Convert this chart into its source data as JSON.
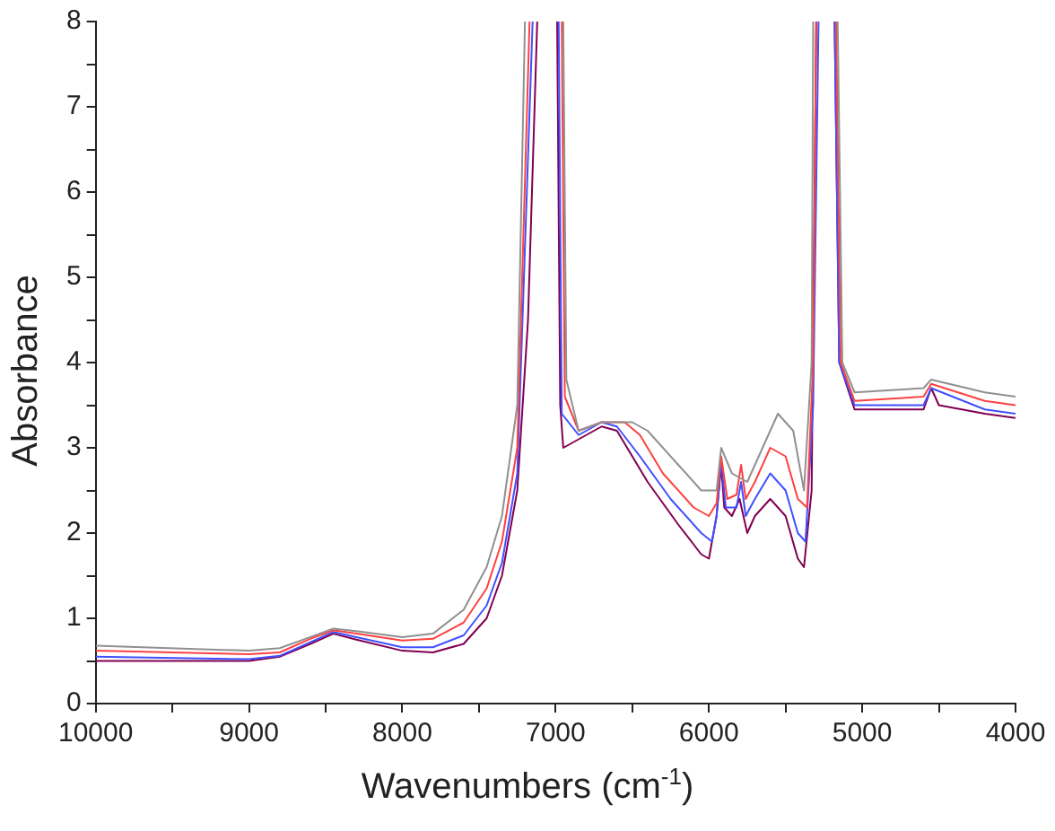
{
  "chart_data": {
    "type": "line",
    "xlabel": "Wavenumbers (cm$^{-1}$)",
    "ylabel": "Absorbance",
    "xlim": [
      10000,
      4000
    ],
    "xticks": [
      10000,
      {
        "value": 9500,
        "label": null
      },
      9000,
      {
        "value": 8500,
        "label": null
      },
      8000,
      {
        "value": 7500,
        "label": null
      },
      7000,
      {
        "value": 6500,
        "label": null
      },
      6000,
      {
        "value": 5500,
        "label": null
      },
      5000,
      {
        "value": 4500,
        "label": null
      },
      4000
    ],
    "ylim": [
      0,
      8
    ],
    "yticks": [
      0,
      {
        "value": 0.5,
        "label": null
      },
      1,
      {
        "value": 1.5,
        "label": null
      },
      2,
      {
        "value": 2.5,
        "label": null
      },
      3,
      {
        "value": 3.5,
        "label": null
      },
      4,
      {
        "value": 4.5,
        "label": null
      },
      5,
      {
        "value": 5.5,
        "label": null
      },
      6,
      {
        "value": 6.5,
        "label": null
      },
      7,
      {
        "value": 7.5,
        "label": null
      },
      8
    ],
    "grid": false,
    "legend": false,
    "marker": "none",
    "line_style": "solid",
    "series": [
      {
        "color": "#909090",
        "x": [
          10000,
          9000,
          8800,
          8600,
          8450,
          8300,
          8000,
          7800,
          7600,
          7450,
          7350,
          7250,
          7200,
          7100,
          6950,
          6930,
          6850,
          6700,
          6500,
          6400,
          6200,
          6050,
          5950,
          5920,
          5850,
          5750,
          5650,
          5550,
          5450,
          5380,
          5330,
          5320,
          5250,
          5160,
          5130,
          5050,
          4600,
          4550,
          4200,
          4000
        ],
        "values": [
          0.68,
          0.62,
          0.65,
          0.78,
          0.88,
          0.85,
          0.78,
          0.82,
          1.1,
          1.6,
          2.2,
          3.5,
          8,
          null,
          8,
          3.8,
          3.2,
          3.3,
          3.3,
          3.2,
          2.8,
          2.5,
          2.5,
          3.0,
          2.7,
          2.6,
          3.0,
          3.4,
          3.2,
          2.5,
          4,
          8,
          null,
          8,
          4,
          3.65,
          3.7,
          3.8,
          3.65,
          3.6
        ]
      },
      {
        "color": "#ff4040",
        "x": [
          10000,
          9000,
          8800,
          8600,
          8450,
          8300,
          8000,
          7800,
          7600,
          7450,
          7350,
          7250,
          7170,
          7100,
          6960,
          6940,
          6850,
          6700,
          6550,
          6450,
          6300,
          6100,
          6000,
          5950,
          5920,
          5880,
          5820,
          5790,
          5760,
          5700,
          5600,
          5500,
          5420,
          5360,
          5320,
          5300,
          5250,
          5170,
          5140,
          5050,
          4600,
          4550,
          4200,
          4000
        ],
        "values": [
          0.62,
          0.58,
          0.6,
          0.76,
          0.86,
          0.82,
          0.74,
          0.76,
          0.95,
          1.35,
          1.9,
          3.0,
          8,
          null,
          8,
          3.6,
          3.2,
          3.3,
          3.3,
          3.15,
          2.7,
          2.3,
          2.2,
          2.35,
          2.9,
          2.4,
          2.45,
          2.8,
          2.4,
          2.6,
          3.0,
          2.9,
          2.4,
          2.3,
          4,
          8,
          null,
          8,
          4,
          3.55,
          3.6,
          3.75,
          3.55,
          3.5
        ]
      },
      {
        "color": "#4050ff",
        "x": [
          10000,
          9000,
          8800,
          8600,
          8450,
          8300,
          8000,
          7800,
          7600,
          7450,
          7350,
          7250,
          7150,
          7100,
          6980,
          6960,
          6850,
          6700,
          6600,
          6450,
          6250,
          6050,
          5980,
          5950,
          5920,
          5890,
          5820,
          5790,
          5760,
          5700,
          5600,
          5500,
          5420,
          5370,
          5320,
          5285,
          5250,
          5180,
          5150,
          5050,
          4600,
          4550,
          4200,
          4000
        ],
        "values": [
          0.55,
          0.52,
          0.56,
          0.72,
          0.84,
          0.78,
          0.66,
          0.66,
          0.8,
          1.15,
          1.65,
          2.7,
          8,
          null,
          8,
          3.4,
          3.15,
          3.3,
          3.25,
          2.9,
          2.4,
          2.0,
          1.9,
          2.2,
          2.85,
          2.3,
          2.3,
          2.6,
          2.2,
          2.4,
          2.7,
          2.5,
          2.0,
          1.9,
          3.5,
          8,
          null,
          8,
          4,
          3.5,
          3.5,
          3.7,
          3.45,
          3.4
        ]
      },
      {
        "color": "#800050",
        "x": [
          10000,
          9000,
          8800,
          8600,
          8450,
          8300,
          8000,
          7800,
          7600,
          7450,
          7350,
          7250,
          7180,
          7120,
          7050,
          6990,
          6970,
          6950,
          6850,
          6700,
          6600,
          6400,
          6200,
          6050,
          6000,
          5950,
          5920,
          5900,
          5850,
          5800,
          5750,
          5700,
          5600,
          5500,
          5420,
          5380,
          5330,
          5300,
          5250,
          5180,
          5150,
          5050,
          4800,
          4600,
          4550,
          4500,
          4200,
          4000
        ],
        "values": [
          0.5,
          0.5,
          0.55,
          0.7,
          0.82,
          0.75,
          0.62,
          0.6,
          0.7,
          1.0,
          1.5,
          2.5,
          4.5,
          8,
          null,
          8,
          3.5,
          3.0,
          3.1,
          3.25,
          3.2,
          2.6,
          2.1,
          1.75,
          1.7,
          2.2,
          2.8,
          2.3,
          2.2,
          2.4,
          2.0,
          2.2,
          2.4,
          2.2,
          1.7,
          1.6,
          2.5,
          8,
          null,
          8,
          4.0,
          3.45,
          3.45,
          3.45,
          3.7,
          3.5,
          3.4,
          3.35
        ]
      }
    ]
  }
}
